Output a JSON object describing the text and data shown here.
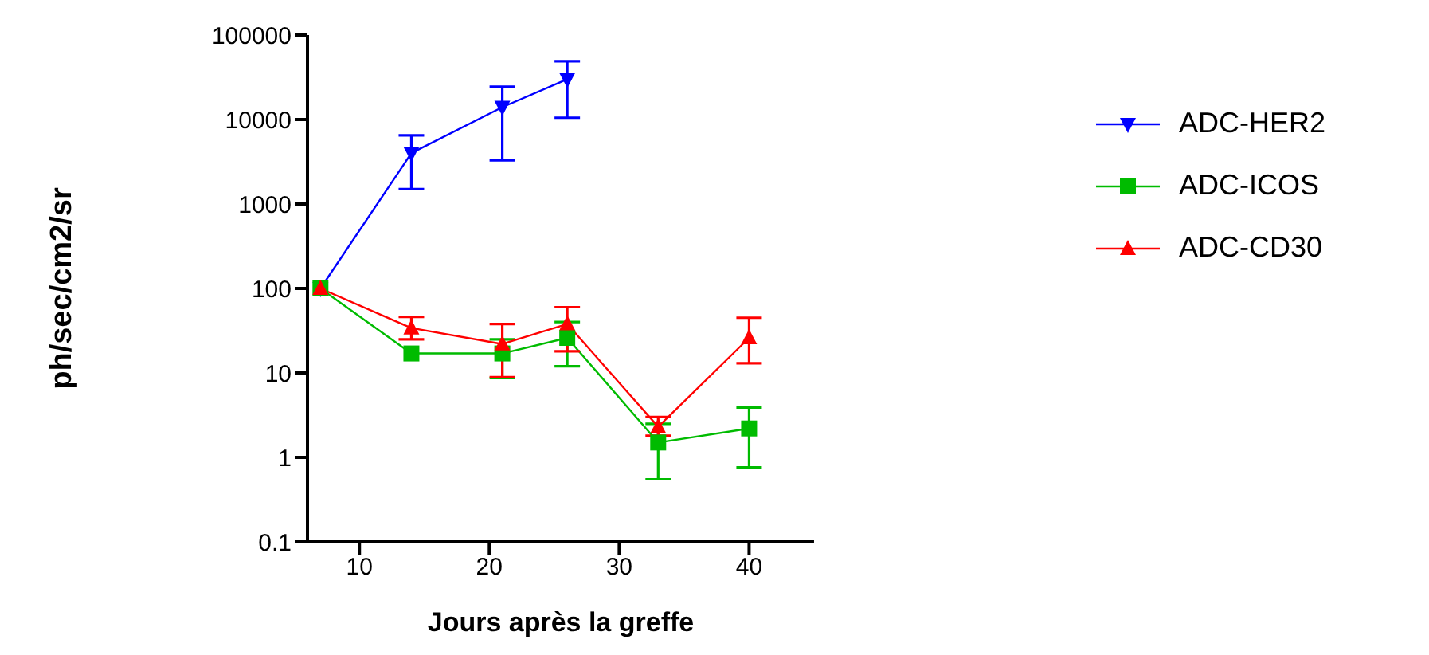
{
  "chart_data": {
    "type": "line",
    "xlabel": "Jours après la greffe",
    "ylabel": "ph/sec/cm2/sr",
    "log": "y",
    "legend": "right",
    "xlim": [
      6,
      45
    ],
    "xticks": [
      10,
      20,
      30,
      40
    ],
    "ylim": [
      0.1,
      100000
    ],
    "yticks": [
      0.1,
      1,
      10,
      100,
      1000,
      10000,
      100000
    ],
    "series": [
      {
        "name": "ADC-HER2",
        "color": "#0000ff",
        "marker": "triangle-down",
        "x": [
          7,
          14,
          21,
          26
        ],
        "values": [
          100,
          4000,
          14000,
          30000
        ],
        "errors": [
          null,
          [
            1500,
            6500
          ],
          [
            3300,
            24500
          ],
          [
            10500,
            49000
          ]
        ]
      },
      {
        "name": "ADC-ICOS",
        "color": "#00bb00",
        "marker": "square",
        "x": [
          7,
          14,
          21,
          26,
          33,
          40
        ],
        "values": [
          100,
          17,
          17,
          26,
          1.5,
          2.2
        ],
        "errors": [
          null,
          null,
          [
            8.7,
            25
          ],
          [
            12,
            40
          ],
          [
            0.55,
            2.5
          ],
          [
            0.76,
            3.9
          ]
        ]
      },
      {
        "name": "ADC-CD30",
        "color": "#ff0000",
        "marker": "triangle",
        "x": [
          7,
          14,
          21,
          26,
          33,
          40
        ],
        "values": [
          100,
          34,
          22,
          38,
          2.3,
          26
        ],
        "errors": [
          null,
          [
            25,
            46
          ],
          [
            8.9,
            38
          ],
          [
            18,
            60
          ],
          [
            1.8,
            3
          ],
          [
            13,
            45
          ]
        ]
      }
    ]
  }
}
